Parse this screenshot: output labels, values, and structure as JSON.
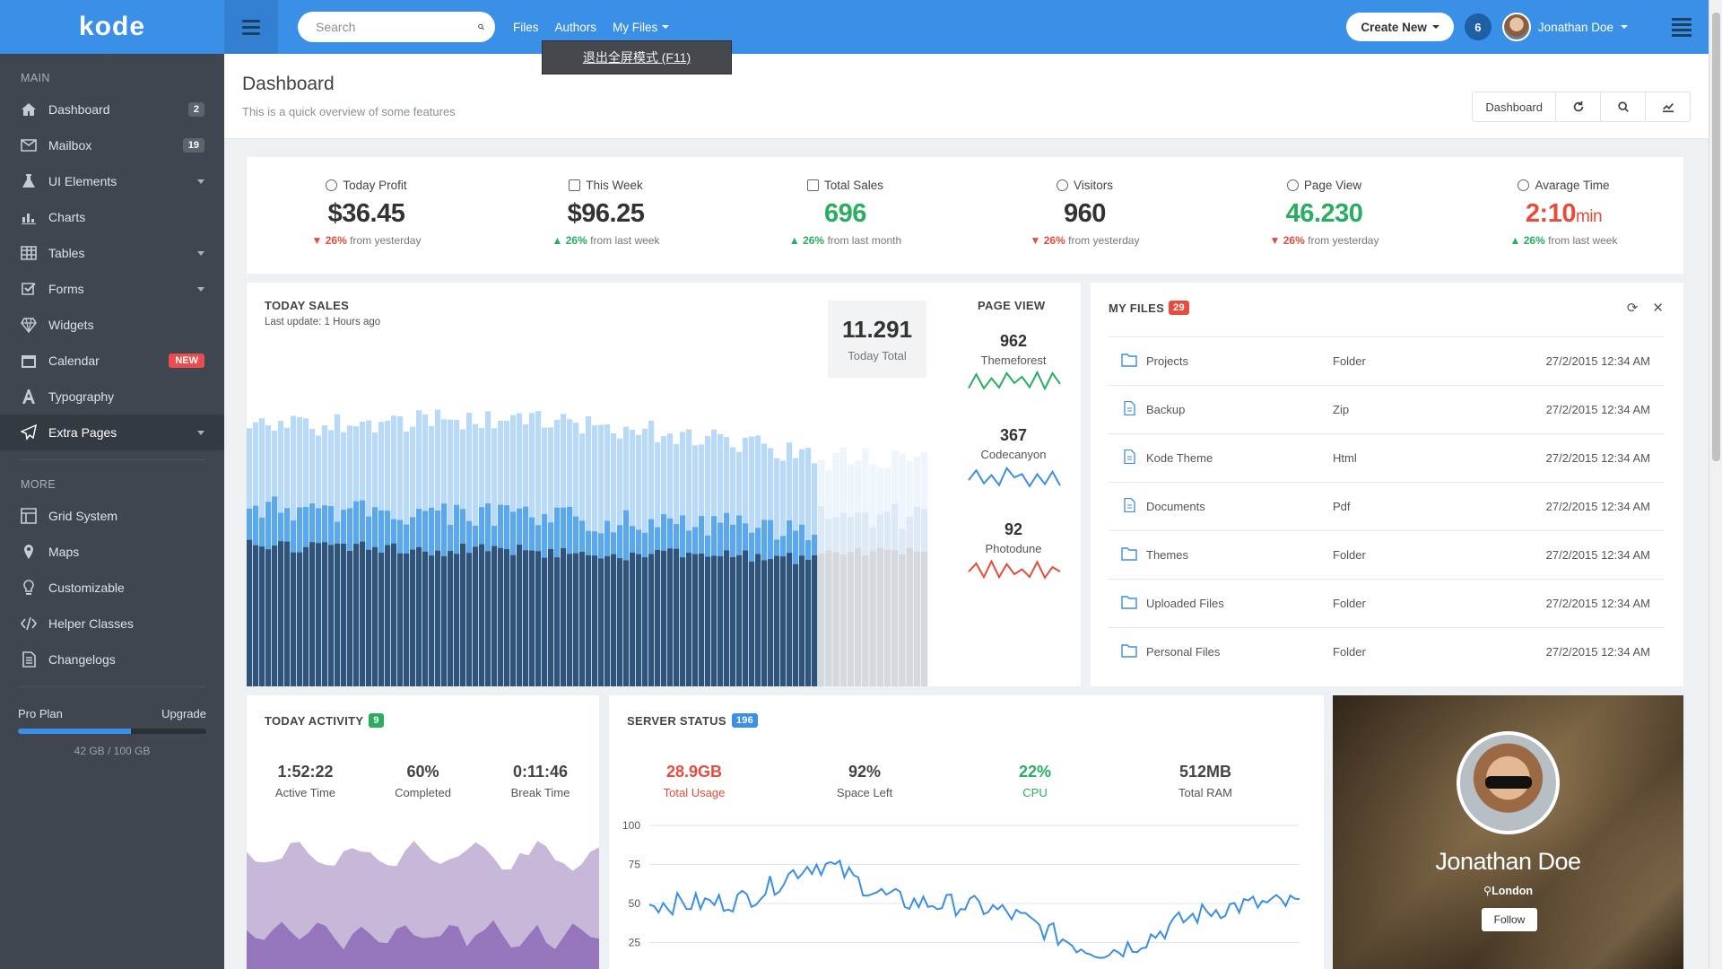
{
  "brand": "kode",
  "sidebar": {
    "main_label": "MAIN",
    "more_label": "MORE",
    "main_items": [
      {
        "label": "Dashboard",
        "badge": "2",
        "icon": "home-icon"
      },
      {
        "label": "Mailbox",
        "badge": "19",
        "icon": "envelope-icon"
      },
      {
        "label": "UI Elements",
        "icon": "flask-icon",
        "caret": true
      },
      {
        "label": "Charts",
        "icon": "bar-chart-icon"
      },
      {
        "label": "Tables",
        "icon": "table-icon",
        "caret": true
      },
      {
        "label": "Forms",
        "icon": "checkbox-icon",
        "caret": true
      },
      {
        "label": "Widgets",
        "icon": "diamond-icon"
      },
      {
        "label": "Calendar",
        "badge": "NEW",
        "icon": "calendar-icon"
      },
      {
        "label": "Typography",
        "icon": "font-icon"
      },
      {
        "label": "Extra Pages",
        "icon": "paper-plane-icon",
        "caret": true,
        "active": true
      }
    ],
    "more_items": [
      {
        "label": "Grid System",
        "icon": "grid-icon"
      },
      {
        "label": "Maps",
        "icon": "map-marker-icon"
      },
      {
        "label": "Customizable",
        "icon": "lightbulb-icon"
      },
      {
        "label": "Helper Classes",
        "icon": "code-icon"
      },
      {
        "label": "Changelogs",
        "icon": "file-text-icon"
      }
    ],
    "plan": {
      "label": "Pro Plan",
      "upgrade": "Upgrade",
      "storage": "42 GB / 100 GB",
      "used_fraction": 0.6
    }
  },
  "topbar": {
    "search_placeholder": "Search",
    "nav": [
      "Files",
      "Authors",
      "My Files"
    ],
    "fullscreen_tip": "退出全屏模式 (F11)",
    "create_new": "Create New",
    "notifications": "6",
    "user_name": "Jonathan Doe"
  },
  "page": {
    "title": "Dashboard",
    "subtitle": "This is a quick overview of some features",
    "tools_label": "Dashboard"
  },
  "stats": [
    {
      "title": "Today Profit",
      "value": "$36.45",
      "trend": "down",
      "pct": "26%",
      "note": "from yesterday",
      "color": "default"
    },
    {
      "title": "This Week",
      "value": "$96.25",
      "trend": "up",
      "pct": "26%",
      "note": "from last week",
      "color": "default"
    },
    {
      "title": "Total Sales",
      "value": "696",
      "trend": "up",
      "pct": "26%",
      "note": "from last month",
      "color": "green"
    },
    {
      "title": "Visitors",
      "value": "960",
      "trend": "down",
      "pct": "26%",
      "note": "from yesterday",
      "color": "default"
    },
    {
      "title": "Page View",
      "value": "46.230",
      "trend": "down",
      "pct": "26%",
      "note": "from yesterday",
      "color": "green"
    },
    {
      "title": "Avarage Time",
      "value": "2:10",
      "unit": "min",
      "trend": "up",
      "pct": "26%",
      "note": "from last week",
      "color": "red"
    }
  ],
  "sales": {
    "title": "TODAY SALES",
    "last_update": "Last update: 1 Hours ago",
    "total_value": "11.291",
    "total_label": "Today Total",
    "page_view_title": "PAGE VIEW",
    "page_views": [
      {
        "value": "962",
        "label": "Themeforest",
        "color": "#27ae60"
      },
      {
        "value": "367",
        "label": "Codecanyon",
        "color": "#3a8fe6"
      },
      {
        "value": "92",
        "label": "Photodune",
        "color": "#e74c3c"
      }
    ]
  },
  "files": {
    "title": "MY FILES",
    "count": "29",
    "rows": [
      {
        "name": "Projects",
        "type": "Folder",
        "date": "27/2/2015 12:34 AM",
        "icon": "folder-icon"
      },
      {
        "name": "Backup",
        "type": "Zip",
        "date": "27/2/2015 12:34 AM",
        "icon": "file-zip-icon"
      },
      {
        "name": "Kode Theme",
        "type": "Html",
        "date": "27/2/2015 12:34 AM",
        "icon": "file-code-icon"
      },
      {
        "name": "Documents",
        "type": "Pdf",
        "date": "27/2/2015 12:34 AM",
        "icon": "file-pdf-icon"
      },
      {
        "name": "Themes",
        "type": "Folder",
        "date": "27/2/2015 12:34 AM",
        "icon": "folder-icon"
      },
      {
        "name": "Uploaded Files",
        "type": "Folder",
        "date": "27/2/2015 12:34 AM",
        "icon": "folder-icon"
      },
      {
        "name": "Personal Files",
        "type": "Folder",
        "date": "27/2/2015 12:34 AM",
        "icon": "folder-icon"
      }
    ]
  },
  "activity": {
    "title": "TODAY ACTIVITY",
    "count": "9",
    "items": [
      {
        "value": "1:52:22",
        "label": "Active Time"
      },
      {
        "value": "60%",
        "label": "Completed"
      },
      {
        "value": "0:11:46",
        "label": "Break Time"
      }
    ]
  },
  "server": {
    "title": "SERVER STATUS",
    "count": "196",
    "items": [
      {
        "value": "28.9GB",
        "label": "Total Usage",
        "color": "red"
      },
      {
        "value": "92%",
        "label": "Space Left",
        "color": "default"
      },
      {
        "value": "22%",
        "label": "CPU",
        "color": "green"
      },
      {
        "value": "512MB",
        "label": "Total RAM",
        "color": "default"
      }
    ],
    "y_ticks": [
      "100",
      "75",
      "50",
      "25"
    ]
  },
  "profile": {
    "name": "Jonathan Doe",
    "location": "London",
    "follow": "Follow"
  }
}
